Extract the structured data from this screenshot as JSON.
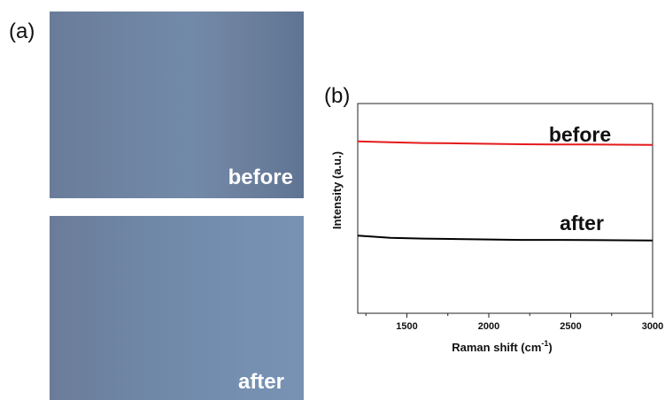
{
  "panel_a": {
    "label": "(a)",
    "photo_before_caption": "before",
    "photo_after_caption": "after"
  },
  "panel_b": {
    "label": "(b)"
  },
  "chart_data": {
    "type": "line",
    "xlabel": "Raman shift (cm",
    "xlabel_superscript": "-1",
    "xlabel_suffix": ")",
    "ylabel": "Intensity (a.u.)",
    "xlim": [
      1200,
      3000
    ],
    "ylim": [
      0,
      1
    ],
    "x_ticks": [
      1500,
      2000,
      2500,
      3000
    ],
    "y_ticks_shown": false,
    "grid": false,
    "series": [
      {
        "name": "before",
        "color": "#e41a1c",
        "x": [
          1200,
          1400,
          1600,
          1800,
          2000,
          2200,
          2400,
          2600,
          2800,
          3000
        ],
        "y": [
          0.82,
          0.815,
          0.812,
          0.81,
          0.808,
          0.806,
          0.805,
          0.805,
          0.804,
          0.803
        ]
      },
      {
        "name": "after",
        "color": "#000000",
        "x": [
          1200,
          1400,
          1600,
          1800,
          2000,
          2200,
          2400,
          2600,
          2800,
          3000
        ],
        "y": [
          0.37,
          0.36,
          0.356,
          0.354,
          0.352,
          0.35,
          0.35,
          0.349,
          0.348,
          0.347
        ]
      }
    ]
  }
}
